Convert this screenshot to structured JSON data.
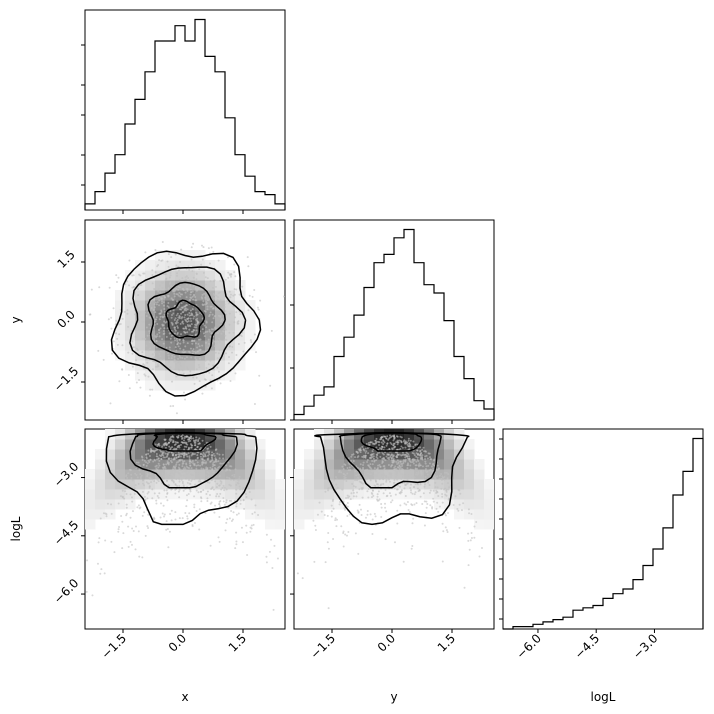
{
  "chart_data": {
    "type": "corner",
    "parameters": [
      "x",
      "y",
      "logL"
    ],
    "ranges": {
      "x": [
        -2.45,
        2.55
      ],
      "y": [
        -2.45,
        2.55
      ],
      "logL": [
        -6.9,
        -1.75
      ]
    },
    "ticks": {
      "x": [
        -1.5,
        0.0,
        1.5
      ],
      "y": [
        -1.5,
        0.0,
        1.5
      ],
      "logL": [
        -6.0,
        -4.5,
        -3.0
      ]
    },
    "tick_labels": {
      "x": [
        "−1.5",
        "0.0",
        "1.5"
      ],
      "y": [
        "−1.5",
        "0.0",
        "1.5"
      ],
      "logL": [
        "−6.0",
        "−4.5",
        "−3.0"
      ]
    },
    "histograms": {
      "x": [
        2,
        6,
        12,
        18,
        28,
        36,
        45,
        55,
        55,
        60,
        55,
        62,
        50,
        45,
        30,
        18,
        11,
        6,
        5,
        2
      ],
      "y": [
        2,
        5,
        9,
        12,
        23,
        30,
        38,
        48,
        57,
        60,
        66,
        69,
        57,
        49,
        46,
        36,
        23,
        15,
        7,
        4
      ],
      "logL": [
        0,
        1,
        1,
        2,
        3,
        4,
        5,
        8,
        9,
        10,
        13,
        15,
        17,
        21,
        27,
        34,
        43,
        57,
        67,
        81
      ]
    },
    "scatter_color": "#bfbfbf",
    "contour_color": "#000000",
    "hist_color": "#000000"
  }
}
